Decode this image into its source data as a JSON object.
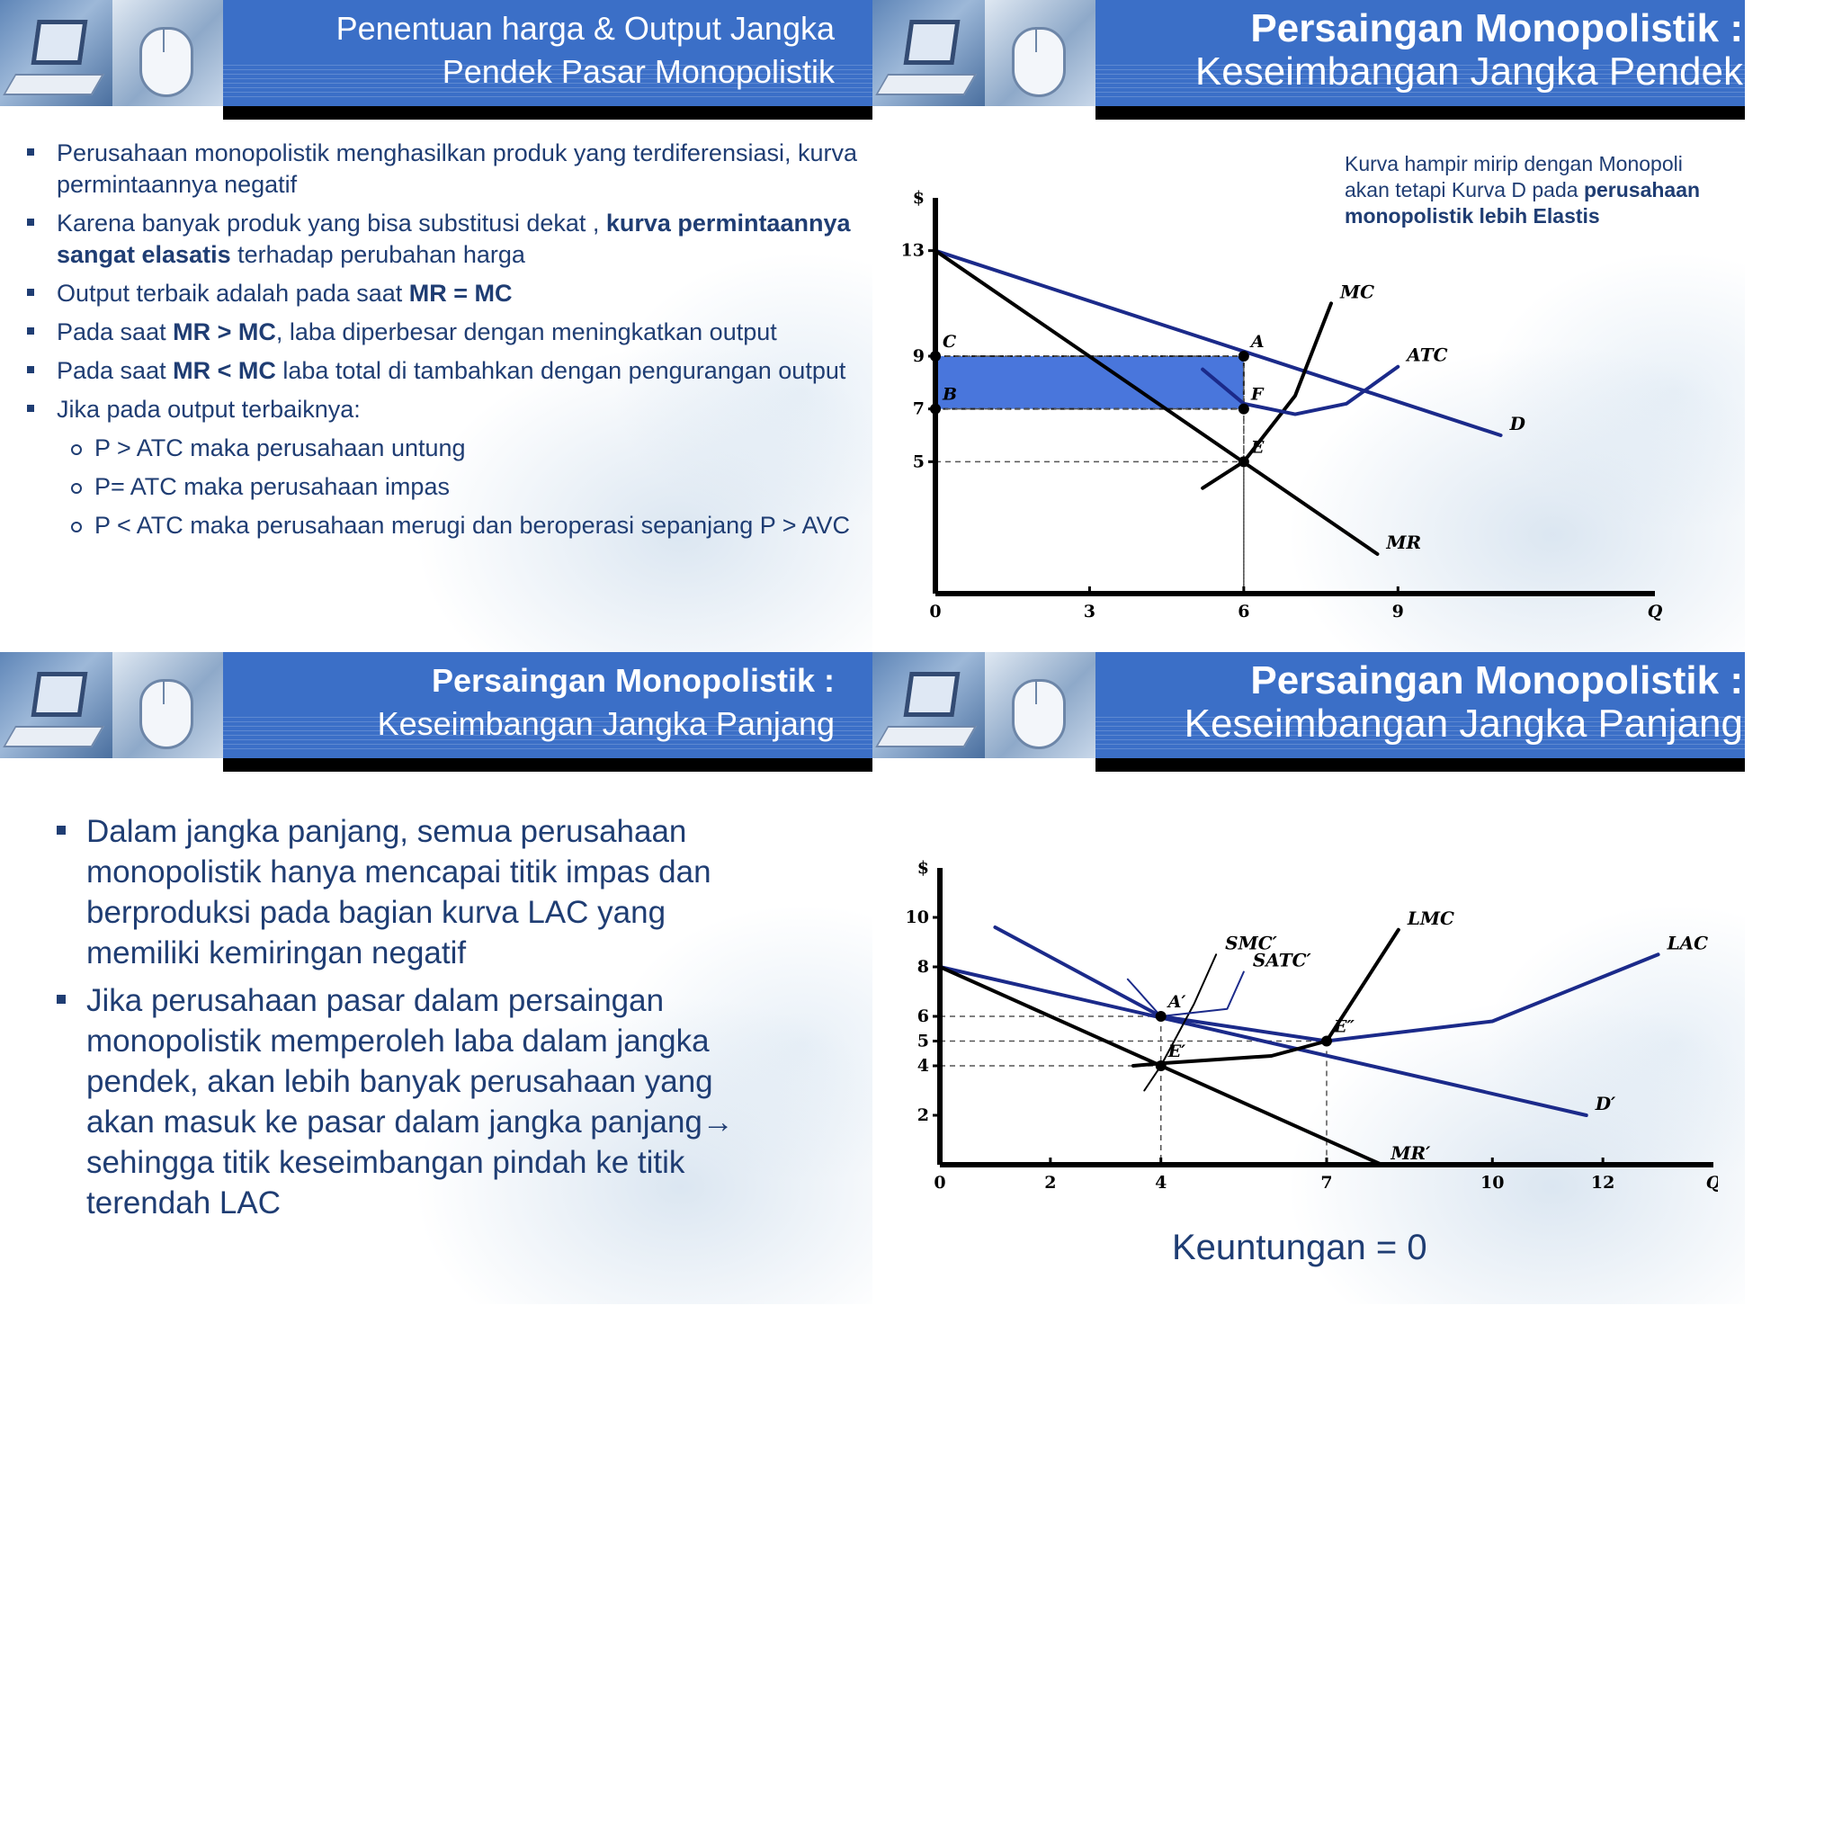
{
  "slide1": {
    "title_line1": "Penentuan harga & Output Jangka",
    "title_line2": "Pendek Pasar Monopolistik",
    "b1": "Perusahaan monopolistik menghasilkan produk yang terdiferensiasi, kurva permintaannya negatif",
    "b2_pre": "Karena banyak produk yang bisa substitusi dekat , ",
    "b2_bold": "kurva permintaannya sangat elasatis",
    "b2_post": " terhadap perubahan harga",
    "b3_pre": "Output terbaik adalah pada saat ",
    "b3_bold": "MR = MC",
    "b4_pre": "Pada saat ",
    "b4_bold": "MR > MC",
    "b4_post": ", laba diperbesar dengan meningkatkan output",
    "b5_pre": "Pada saat ",
    "b5_bold": "MR < MC",
    "b5_post": " laba total di tambahkan dengan pengurangan output",
    "b6": "Jika pada output terbaiknya:",
    "sub1": "P > ATC maka perusahaan untung",
    "sub2": "P= ATC maka perusahaan impas",
    "sub3": "P < ATC maka perusahaan merugi dan beroperasi  sepanjang P > AVC"
  },
  "slide2": {
    "title_line1": "Persaingan Monopolistik :",
    "title_line2": "Keseimbangan Jangka Pendek",
    "annot_pre": "Kurva hampir mirip dengan Monopoli akan tetapi Kurva D pada ",
    "annot_bold": "perusahaan monopolistik lebih Elastis"
  },
  "slide3": {
    "title_line1": "Persaingan Monopolistik :",
    "title_line2": "Keseimbangan Jangka Panjang",
    "b1": "Dalam jangka panjang, semua perusahaan monopolistik hanya mencapai titik impas dan berproduksi pada bagian kurva LAC yang memiliki kemiringan negatif",
    "b2": "Jika perusahaan pasar dalam persaingan monopolistik memperoleh laba dalam jangka pendek, akan lebih banyak perusahaan yang akan masuk ke pasar dalam jangka panjang→ sehingga titik keseimbangan pindah ke titik terendah LAC"
  },
  "slide4": {
    "title_line1": "Persaingan Monopolistik :",
    "title_line2": "Keseimbangan Jangka Panjang",
    "caption": "Keuntungan = 0"
  },
  "chart_data": [
    {
      "type": "line",
      "title": "",
      "xlabel": "Q",
      "ylabel": "$",
      "xlim": [
        0,
        14
      ],
      "ylim": [
        0,
        15
      ],
      "x_ticks": [
        "0",
        "3",
        "6",
        "9",
        "Q"
      ],
      "y_ticks": [
        "13",
        "9",
        "7",
        "5",
        "$"
      ],
      "series": [
        {
          "name": "D",
          "x": [
            0,
            11
          ],
          "y": [
            13,
            6
          ]
        },
        {
          "name": "MR",
          "x": [
            0,
            8.6
          ],
          "y": [
            13,
            1.5
          ]
        },
        {
          "name": "MC",
          "x": [
            5.2,
            6,
            7,
            7.7
          ],
          "y": [
            4,
            5,
            7.5,
            11
          ]
        },
        {
          "name": "ATC",
          "x": [
            5.2,
            6,
            7,
            8,
            9
          ],
          "y": [
            8.5,
            7.2,
            6.8,
            7.2,
            8.6
          ]
        }
      ],
      "points": [
        {
          "label": "A",
          "x": 6,
          "y": 9
        },
        {
          "label": "F",
          "x": 6,
          "y": 7
        },
        {
          "label": "E",
          "x": 6,
          "y": 5
        },
        {
          "label": "C",
          "x": 0,
          "y": 9
        },
        {
          "label": "B",
          "x": 0,
          "y": 7
        }
      ],
      "profit_rect": {
        "x": [
          0,
          6
        ],
        "y": [
          7,
          9
        ]
      },
      "fill_color": "#2a5fd6"
    },
    {
      "type": "line",
      "title": "",
      "xlabel": "Q",
      "ylabel": "$",
      "xlim": [
        0,
        14
      ],
      "ylim": [
        0,
        12
      ],
      "x_ticks": [
        "0",
        "2",
        "4",
        "7",
        "10",
        "12",
        "Q"
      ],
      "y_ticks": [
        "10",
        "8",
        "6",
        "5",
        "4",
        "2",
        "$"
      ],
      "series": [
        {
          "name": "D′",
          "x": [
            0,
            11.7
          ],
          "y": [
            8,
            2
          ]
        },
        {
          "name": "MR′",
          "x": [
            0,
            8
          ],
          "y": [
            8,
            0
          ]
        },
        {
          "name": "LAC",
          "x": [
            1,
            4,
            7,
            10,
            13
          ],
          "y": [
            9.6,
            6,
            5,
            5.8,
            8.5
          ]
        },
        {
          "name": "LMC",
          "x": [
            3.5,
            4,
            6,
            7,
            8.3
          ],
          "y": [
            4,
            4.1,
            4.4,
            5,
            9.5
          ]
        },
        {
          "name": "SMC′",
          "x": [
            3.7,
            4,
            4.6,
            5
          ],
          "y": [
            3,
            4,
            6.5,
            8.5
          ]
        },
        {
          "name": "SATC′",
          "x": [
            3.4,
            4,
            5.2,
            5.5
          ],
          "y": [
            7.5,
            6,
            6.3,
            7.8
          ]
        }
      ],
      "points": [
        {
          "label": "A′",
          "x": 4,
          "y": 6
        },
        {
          "label": "E′",
          "x": 4,
          "y": 4
        },
        {
          "label": "E″",
          "x": 7,
          "y": 5
        }
      ]
    }
  ],
  "colors": {
    "title_bar": "#3b6fc7",
    "text": "#1f3d73",
    "curve_blue": "#1b2a8a",
    "curve_black": "#000000"
  }
}
